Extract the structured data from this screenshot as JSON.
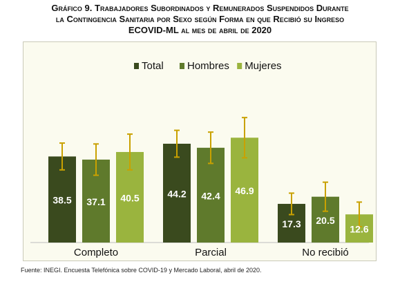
{
  "title": {
    "line1": "Gráfico 9. Trabajadores Subordinados y Remunerados Suspendidos Durante",
    "line2": "la Contingencia Sanitaria por Sexo según Forma en que Recibió su Ingreso",
    "line3": "ECOVID-ML al mes de abril de 2020"
  },
  "source": "Fuente:   INEGI. Encuesta Telefónica sobre COVID-19 y Mercado Laboral, abril de 2020.",
  "chart_data": {
    "type": "bar",
    "categories": [
      "Completo",
      "Parcial",
      "No recibió"
    ],
    "series": [
      {
        "name": "Total",
        "color": "#3a4a1e",
        "values": [
          38.5,
          44.2,
          17.3
        ],
        "error": [
          6.0,
          6.0,
          4.8
        ]
      },
      {
        "name": "Hombres",
        "color": "#5f7a2c",
        "values": [
          37.1,
          42.4,
          20.5
        ],
        "error": [
          7.0,
          7.0,
          6.5
        ]
      },
      {
        "name": "Mujeres",
        "color": "#9ab43e",
        "values": [
          40.5,
          46.9,
          12.6
        ],
        "error": [
          8.0,
          9.0,
          5.5
        ]
      }
    ],
    "error_bar_color": "#c9a100",
    "ylim": [
      0,
      68
    ],
    "legend_position": "top-center",
    "grid": false,
    "data_labels": true
  }
}
